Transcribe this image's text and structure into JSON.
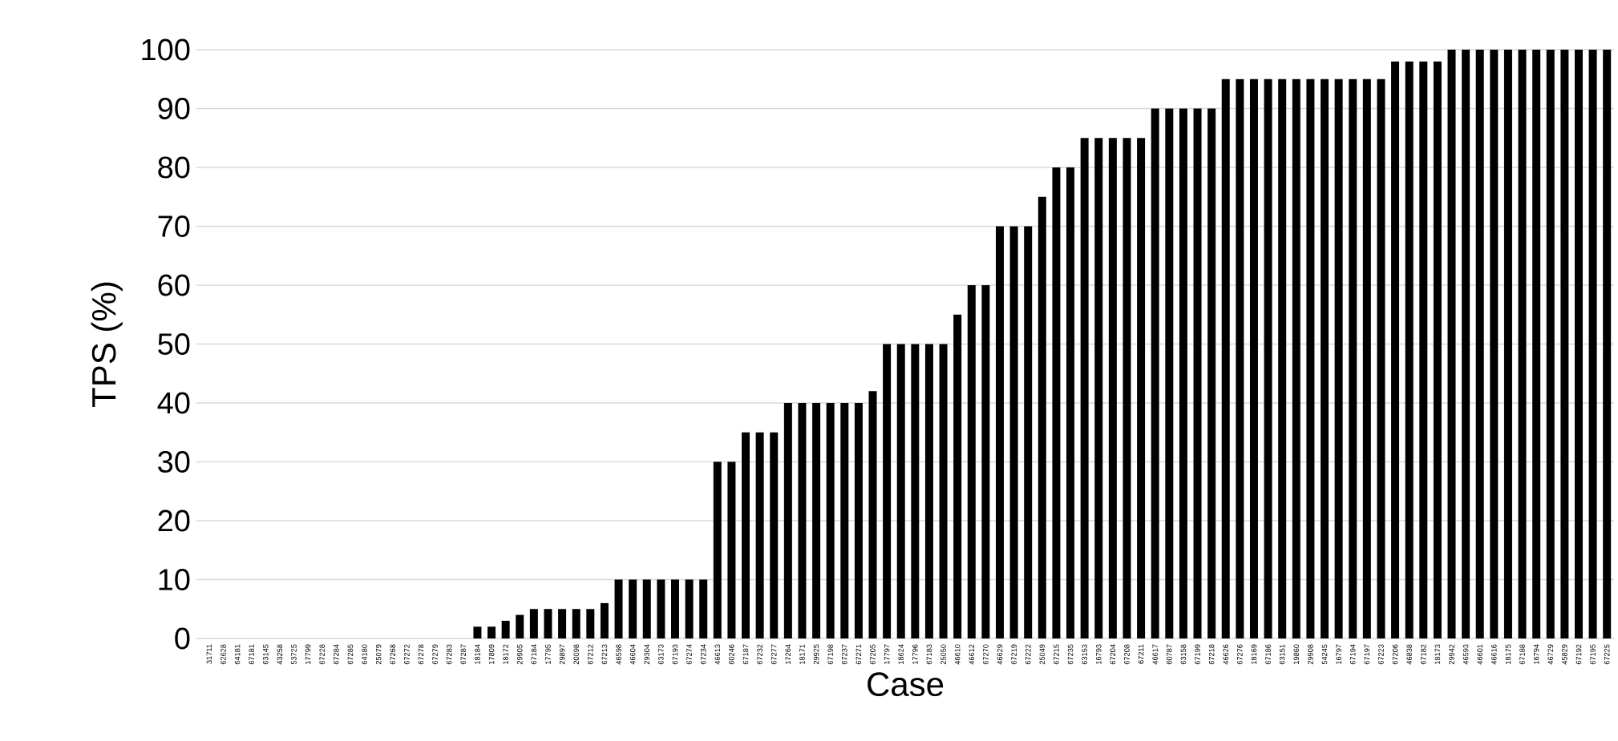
{
  "chart_data": {
    "type": "bar",
    "xlabel": "Case",
    "ylabel": "TPS (%)",
    "categories": [
      "31711",
      "62628",
      "64181",
      "67181",
      "63145",
      "43258",
      "53725",
      "17799",
      "67228",
      "67284",
      "67285",
      "64180",
      "25079",
      "67268",
      "67272",
      "67278",
      "67279",
      "67283",
      "67287",
      "18184",
      "17809",
      "18172",
      "29905",
      "67184",
      "17795",
      "29897",
      "20098",
      "67212",
      "67213",
      "46598",
      "46604",
      "29304",
      "63173",
      "67193",
      "67274",
      "67234",
      "46613",
      "60246",
      "67187",
      "67232",
      "67277",
      "17264",
      "18171",
      "29925",
      "67198",
      "67237",
      "67271",
      "67205",
      "17797",
      "18624",
      "17796",
      "67183",
      "25050",
      "46610",
      "46612",
      "67270",
      "46629",
      "67219",
      "67222",
      "25049",
      "67215",
      "67235",
      "63153",
      "16793",
      "67204",
      "67208",
      "67211",
      "46617",
      "60787",
      "63158",
      "67199",
      "67218",
      "46626",
      "67276",
      "18169",
      "67186",
      "63151",
      "19860",
      "29908",
      "54245",
      "16797",
      "67194",
      "67197",
      "67223",
      "67206",
      "46838",
      "67182",
      "18173",
      "29942",
      "46593",
      "46601",
      "46616",
      "18175",
      "67188",
      "16794",
      "46729",
      "45829",
      "67192",
      "67195",
      "67225"
    ],
    "values": [
      0,
      0,
      0,
      0,
      0,
      0,
      0,
      0,
      0,
      0,
      0,
      0,
      0,
      0,
      0,
      0,
      0,
      0,
      0,
      2,
      2,
      3,
      4,
      5,
      5,
      5,
      5,
      5,
      6,
      10,
      10,
      10,
      10,
      10,
      10,
      10,
      30,
      30,
      35,
      35,
      35,
      40,
      40,
      40,
      40,
      40,
      40,
      42,
      50,
      50,
      50,
      50,
      50,
      55,
      60,
      60,
      70,
      70,
      70,
      75,
      80,
      80,
      85,
      85,
      85,
      85,
      85,
      90,
      90,
      90,
      90,
      90,
      95,
      95,
      95,
      95,
      95,
      95,
      95,
      95,
      95,
      95,
      95,
      95,
      98,
      98,
      98,
      98,
      100,
      100,
      100,
      100,
      100,
      100,
      100,
      100,
      100,
      100,
      100,
      100
    ],
    "color": "#000000",
    "ylim": [
      0,
      100
    ],
    "yticks": [
      0,
      10,
      20,
      30,
      40,
      50,
      60,
      70,
      80,
      90,
      100
    ],
    "grid": "y"
  }
}
